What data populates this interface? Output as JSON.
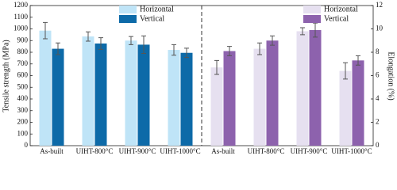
{
  "chart_data": {
    "type": "bar",
    "y_label": "Tensile strength (MPa)",
    "y2_label": "Elongation (%)",
    "categories": [
      "As-built",
      "UIHT-800°C",
      "UIHT-900°C",
      "UIHT-1000°C",
      "As-built",
      "UIHT-800°C",
      "UIHT-900°C",
      "UIHT-1000°C"
    ],
    "series": [
      {
        "name": "Horizontal",
        "color": "#bfe4f7",
        "values": [
          985,
          935,
          900,
          820,
          null,
          null,
          null,
          null
        ],
        "errors": [
          70,
          40,
          35,
          45,
          null,
          null,
          null,
          null
        ]
      },
      {
        "name": "Vertical",
        "color": "#0d6aa8",
        "values": [
          830,
          875,
          865,
          795,
          null,
          null,
          null,
          null
        ],
        "errors": [
          50,
          50,
          75,
          40,
          null,
          null,
          null,
          null
        ]
      },
      {
        "name": "Horizontal",
        "color": "#e6e0f0",
        "axis": "y2",
        "values": [
          null,
          null,
          null,
          null,
          6.7,
          8.3,
          9.8,
          6.4
        ],
        "errors": [
          null,
          null,
          null,
          null,
          0.6,
          0.5,
          0.3,
          0.7
        ]
      },
      {
        "name": "Vertical",
        "color": "#8d62ad",
        "axis": "y2",
        "values": [
          null,
          null,
          null,
          null,
          8.1,
          9.0,
          9.9,
          7.3
        ],
        "errors": [
          null,
          null,
          null,
          null,
          0.4,
          0.4,
          0.6,
          0.4
        ]
      }
    ],
    "ylim": [
      0,
      1200
    ],
    "yticks": [
      0,
      100,
      200,
      300,
      400,
      500,
      600,
      700,
      800,
      900,
      1000,
      1100,
      1200
    ],
    "y2lim": [
      0,
      12
    ],
    "y2ticks": [
      0,
      2,
      4,
      6,
      8,
      10,
      12
    ]
  }
}
